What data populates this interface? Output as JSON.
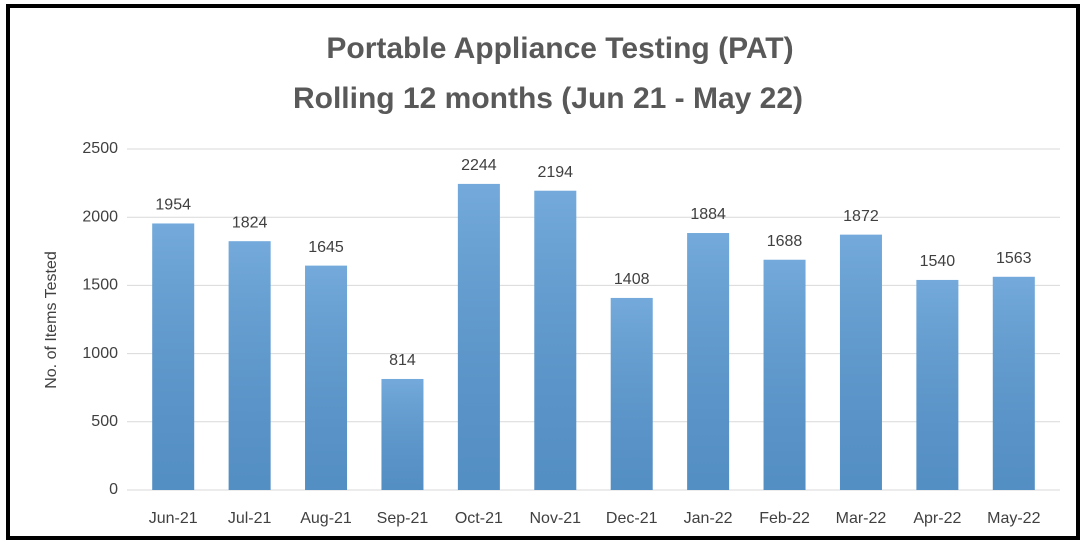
{
  "chart_data": {
    "type": "bar",
    "title": [
      "Portable Appliance Testing (PAT)",
      "Rolling 12 months (Jun 21 - May 22)"
    ],
    "y_label": "No. of Items Tested",
    "categories": [
      "Jun-21",
      "Jul-21",
      "Aug-21",
      "Sep-21",
      "Oct-21",
      "Nov-21",
      "Dec-21",
      "Jan-22",
      "Feb-22",
      "Mar-22",
      "Apr-22",
      "May-22"
    ],
    "values": [
      1954,
      1824,
      1645,
      814,
      2244,
      2194,
      1408,
      1884,
      1688,
      1872,
      1540,
      1563
    ],
    "color": "#5b9bd5",
    "ylim": [
      0,
      2500
    ],
    "yticks": [
      0,
      500,
      1000,
      1500,
      2000,
      2500
    ],
    "grid": true
  }
}
